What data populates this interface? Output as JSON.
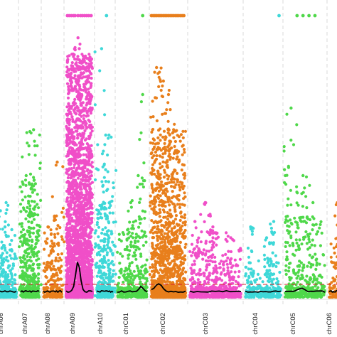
{
  "chart_data": {
    "type": "scatter",
    "xlabel": "",
    "ylabel": "",
    "grid": "vertical dashed separators between chromosomes",
    "legend": "none",
    "categories": [
      "chrA06",
      "chrA07",
      "chrA08",
      "chrA09",
      "chrA10",
      "chrC01",
      "chrC02",
      "chrC03",
      "chrC04",
      "chrC05",
      "chrC06"
    ],
    "colors": {
      "chrA06": "#3fd8d8",
      "chrA07": "#4fd84a",
      "chrA08": "#e87f1c",
      "chrA09": "#f04fc8",
      "chrA10": "#3fd8d8",
      "chrC01": "#4fd84a",
      "chrC02": "#e87f1c",
      "chrC03": "#f04fc8",
      "chrC04": "#3fd8d8",
      "chrC05": "#4fd84a",
      "chrC06": "#e87f1c"
    },
    "capped_points": {
      "chrA06": [
        0.0
      ],
      "chrA09": [
        0.05,
        0.12,
        0.2,
        0.28,
        0.34,
        0.45,
        0.55,
        0.62,
        0.7,
        0.78,
        0.86,
        0.95
      ],
      "chrA10": [
        0.6
      ],
      "chrC01": [
        0.85
      ],
      "chrC02": [
        0.0,
        0.05,
        0.1,
        0.15,
        0.2,
        0.25,
        0.3,
        0.35,
        0.4,
        0.45,
        0.5,
        0.55,
        0.6,
        0.65,
        0.7,
        0.75,
        0.8,
        0.85,
        0.9,
        0.95
      ],
      "chrC04": [
        0.95
      ],
      "chrC05": [
        0.3,
        0.45,
        0.6,
        0.75
      ]
    },
    "segments": {
      "chrA06": {
        "bulk": 0.18,
        "density": 140,
        "peaks": [
          [
            0.3,
            0.32,
            2
          ],
          [
            0.5,
            0.26,
            1
          ],
          [
            0.8,
            0.25,
            1
          ],
          [
            0.55,
            0.35,
            1
          ]
        ]
      },
      "chrA07": {
        "bulk": 0.33,
        "density": 170,
        "peaks": [
          [
            0.7,
            0.62,
            2
          ],
          [
            0.45,
            0.56,
            2
          ],
          [
            0.3,
            0.45,
            2
          ],
          [
            0.8,
            0.42,
            2
          ],
          [
            0.15,
            0.25,
            1
          ]
        ]
      },
      "chrA08": {
        "bulk": 0.22,
        "density": 90,
        "peaks": [
          [
            0.75,
            0.5,
            2
          ],
          [
            0.25,
            0.26,
            1
          ],
          [
            0.6,
            0.3,
            1
          ]
        ]
      },
      "chrA09": {
        "bulk": 0.9,
        "density": 2200,
        "peaks": [
          [
            0.45,
            0.96,
            3
          ],
          [
            0.35,
            0.78,
            2
          ],
          [
            0.55,
            0.85,
            2
          ],
          [
            0.5,
            0.92,
            3
          ]
        ]
      },
      "chrA10": {
        "bulk": 0.36,
        "density": 210,
        "peaks": [
          [
            0.3,
            0.92,
            2
          ],
          [
            0.75,
            0.6,
            2
          ],
          [
            0.55,
            0.6,
            1
          ]
        ]
      },
      "chrC01": {
        "bulk": 0.26,
        "density": 190,
        "peaks": [
          [
            0.7,
            0.45,
            2
          ],
          [
            0.85,
            0.75,
            1
          ],
          [
            0.45,
            0.35,
            1
          ]
        ]
      },
      "chrC02": {
        "bulk": 0.62,
        "density": 900,
        "peaks": [
          [
            0.15,
            0.85,
            3
          ],
          [
            0.35,
            0.8,
            3
          ],
          [
            0.5,
            0.75,
            2
          ],
          [
            0.65,
            0.62,
            2
          ],
          [
            0.8,
            0.5,
            2
          ]
        ]
      },
      "chrC03": {
        "bulk": 0.24,
        "density": 330,
        "peaks": [
          [
            0.3,
            0.35,
            2
          ],
          [
            0.45,
            0.26,
            1
          ],
          [
            0.8,
            0.22,
            1
          ],
          [
            0.1,
            0.28,
            1
          ]
        ]
      },
      "chrC04": {
        "bulk": 0.14,
        "density": 140,
        "peaks": [
          [
            0.6,
            0.22,
            1
          ],
          [
            0.8,
            0.28,
            1
          ],
          [
            0.15,
            0.26,
            1
          ]
        ]
      },
      "chrC05": {
        "bulk": 0.3,
        "density": 210,
        "peaks": [
          [
            0.15,
            0.7,
            2
          ],
          [
            0.45,
            0.45,
            2
          ],
          [
            0.7,
            0.35,
            1
          ]
        ]
      },
      "chrC06": {
        "bulk": 0.2,
        "density": 60,
        "peaks": [
          [
            0.6,
            0.35,
            1
          ]
        ]
      }
    }
  }
}
